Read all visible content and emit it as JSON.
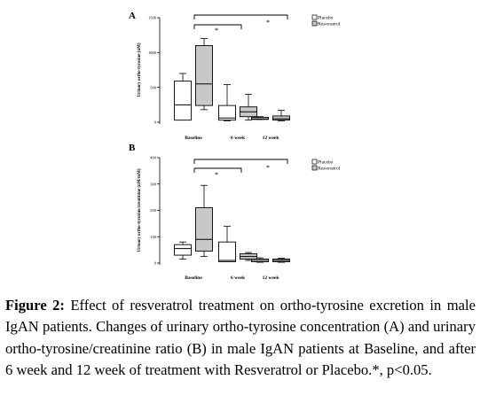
{
  "caption": {
    "label": "Figure 2:",
    "text": " Effect of resveratrol treatment on ortho-tyrosine excretion in male IgAN patients. Changes of urinary ortho-tyrosine concentration (A) and urinary ortho-tyrosine/creatinine ratio (B) in male IgAN patients at Baseline, and after 6 week and 12 week of treatment with Resveratrol or Placebo.*, p<0.05."
  },
  "colors": {
    "placebo": "#ffffff",
    "resveratrol": "#c8c8c8",
    "line": "#000000"
  },
  "chart_data": [
    {
      "panel": "A",
      "type": "boxplot",
      "title": "",
      "ylabel": "Urinary ortho-tyrosine (nM)",
      "ylim": [
        0,
        1500
      ],
      "yticks": [
        "0",
        "500",
        "1000",
        "1500"
      ],
      "categories": [
        "Baseline",
        "6 week",
        "12 week"
      ],
      "legend": {
        "placement": "top-right",
        "entries": [
          "Placebo",
          "Resveratrol"
        ]
      },
      "series": [
        {
          "name": "Placebo",
          "boxes": [
            {
              "min": 30,
              "q1": 30,
              "median": 250,
              "q3": 590,
              "max": 700
            },
            {
              "min": 20,
              "q1": 30,
              "median": 60,
              "q3": 240,
              "max": 540
            },
            {
              "min": 40,
              "q1": 40,
              "median": 50,
              "q3": 70,
              "max": 80
            }
          ]
        },
        {
          "name": "Resveratrol",
          "boxes": [
            {
              "min": 180,
              "q1": 240,
              "median": 550,
              "q3": 1100,
              "max": 1200
            },
            {
              "min": 30,
              "q1": 80,
              "median": 150,
              "q3": 220,
              "max": 400
            },
            {
              "min": 20,
              "q1": 30,
              "median": 50,
              "q3": 90,
              "max": 170
            }
          ]
        }
      ],
      "significance": [
        {
          "from": "Baseline",
          "to": "6 week",
          "marker": "*"
        },
        {
          "from": "Baseline",
          "to": "12 week",
          "marker": "*"
        }
      ]
    },
    {
      "panel": "B",
      "type": "boxplot",
      "title": "",
      "ylabel": "Urinary ortho-tyrosine/creatinine (nM/mM)",
      "ylim": [
        0,
        400
      ],
      "yticks": [
        "0",
        "100",
        "200",
        "300",
        "400"
      ],
      "categories": [
        "Baseline",
        "6 week",
        "12 week"
      ],
      "legend": {
        "placement": "top-right",
        "entries": [
          "Placebo",
          "Resveratrol"
        ]
      },
      "series": [
        {
          "name": "Placebo",
          "boxes": [
            {
              "min": 15,
              "q1": 30,
              "median": 55,
              "q3": 70,
              "max": 80
            },
            {
              "min": 5,
              "q1": 5,
              "median": 10,
              "q3": 80,
              "max": 140
            },
            {
              "min": 3,
              "q1": 5,
              "median": 10,
              "q3": 15,
              "max": 20
            }
          ]
        },
        {
          "name": "Resveratrol",
          "boxes": [
            {
              "min": 25,
              "q1": 45,
              "median": 90,
              "q3": 210,
              "max": 295
            },
            {
              "min": 10,
              "q1": 15,
              "median": 25,
              "q3": 35,
              "max": 40
            },
            {
              "min": 3,
              "q1": 5,
              "median": 10,
              "q3": 15,
              "max": 18
            }
          ]
        }
      ],
      "significance": [
        {
          "from": "Baseline",
          "to": "6 week",
          "marker": "*"
        },
        {
          "from": "Baseline",
          "to": "12 week",
          "marker": "*"
        }
      ]
    }
  ]
}
